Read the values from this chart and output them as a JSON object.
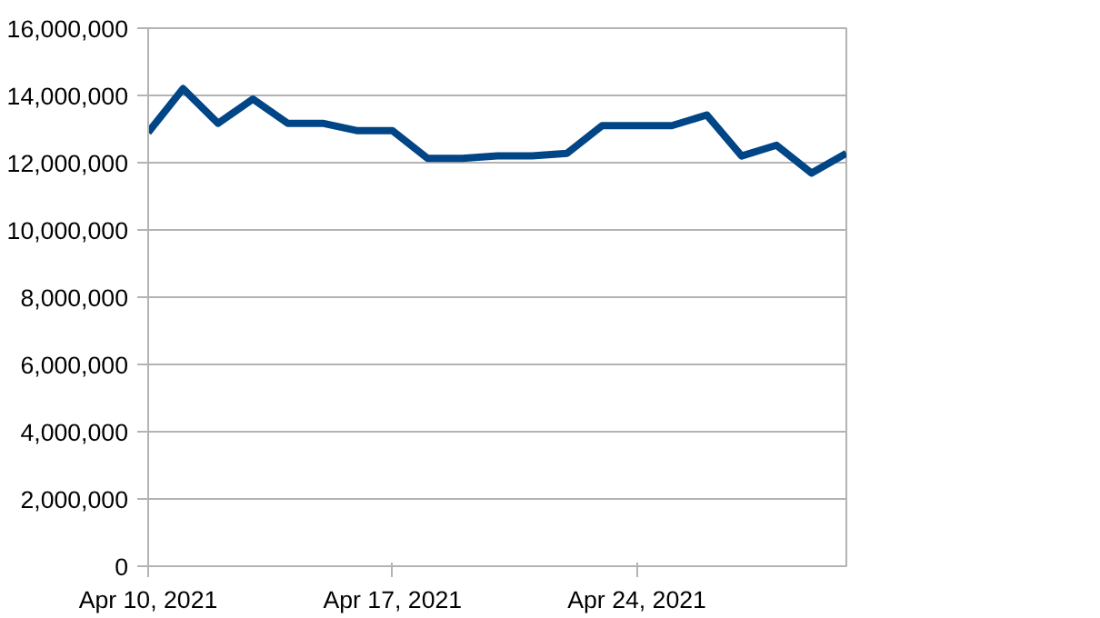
{
  "chart_data": {
    "type": "line",
    "x": [
      "2021-04-10",
      "2021-04-11",
      "2021-04-12",
      "2021-04-13",
      "2021-04-14",
      "2021-04-15",
      "2021-04-16",
      "2021-04-17",
      "2021-04-18",
      "2021-04-19",
      "2021-04-20",
      "2021-04-21",
      "2021-04-22",
      "2021-04-23",
      "2021-04-24",
      "2021-04-25",
      "2021-04-26",
      "2021-04-27",
      "2021-04-28",
      "2021-04-29",
      "2021-04-30"
    ],
    "series": [
      {
        "color": "#004586",
        "values": [
          12900000,
          14200000,
          13170000,
          13890000,
          13170000,
          13170000,
          12950000,
          12950000,
          12130000,
          12130000,
          12200000,
          12200000,
          12280000,
          13100000,
          13100000,
          13100000,
          13420000,
          12200000,
          12520000,
          11690000,
          12280000
        ]
      }
    ],
    "xlim": [
      "2021-04-10",
      "2021-04-30"
    ],
    "xticks": [
      {
        "value": "2021-04-10",
        "label": "Apr 10, 2021"
      },
      {
        "value": "2021-04-17",
        "label": "Apr 17, 2021"
      },
      {
        "value": "2021-04-24",
        "label": "Apr 24, 2021"
      }
    ],
    "ylim": [
      0,
      16000000
    ],
    "yticks": [
      {
        "value": 0,
        "label": "0"
      },
      {
        "value": 2000000,
        "label": "2,000,000"
      },
      {
        "value": 4000000,
        "label": "4,000,000"
      },
      {
        "value": 6000000,
        "label": "6,000,000"
      },
      {
        "value": 8000000,
        "label": "8,000,000"
      },
      {
        "value": 10000000,
        "label": "10,000,000"
      },
      {
        "value": 12000000,
        "label": "12,000,000"
      },
      {
        "value": 14000000,
        "label": "14,000,000"
      },
      {
        "value": 16000000,
        "label": "16,000,000"
      }
    ],
    "grid": "y",
    "line_style": "solid"
  }
}
